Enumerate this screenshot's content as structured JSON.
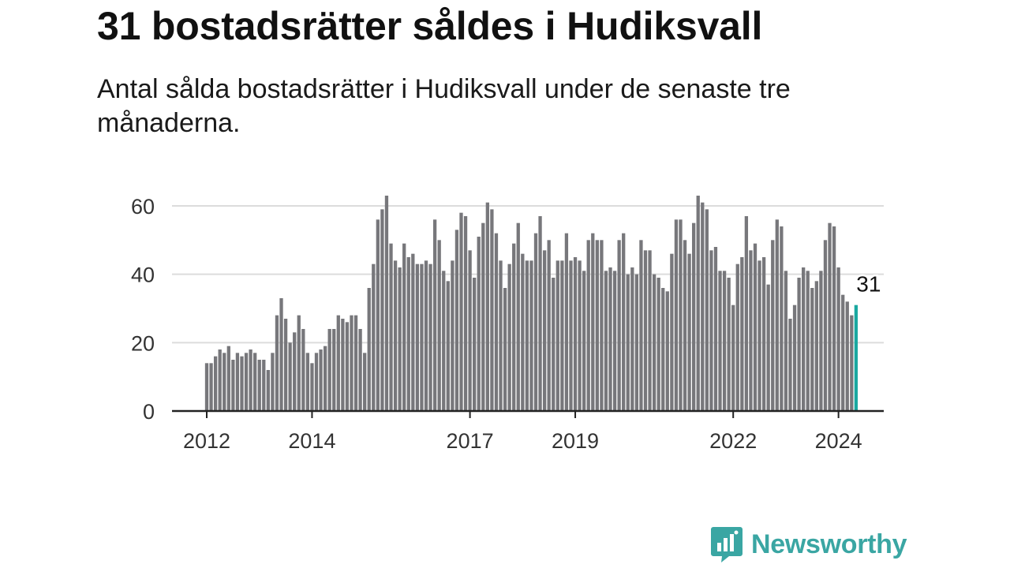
{
  "title": "31 bostadsrätter såldes i Hudiksvall",
  "subtitle": "Antal sålda bostadsrätter i Hudiksvall under de senaste tre månaderna.",
  "brand": {
    "name": "Newsworthy",
    "icon": "newsworthy-logo-icon",
    "color": "#3aa6a3"
  },
  "colors": {
    "bar": "#77777b",
    "highlight": "#1aa8a0",
    "grid": "#dcdcdc",
    "axis": "#222222"
  },
  "chart_data": {
    "type": "bar",
    "xlabel": "",
    "ylabel": "",
    "ylim": [
      0,
      65
    ],
    "yticks": [
      0,
      20,
      40,
      60
    ],
    "x_start": "2012-01",
    "x_ticks": [
      {
        "label": "2012",
        "index": 0
      },
      {
        "label": "2014",
        "index": 24
      },
      {
        "label": "2017",
        "index": 60
      },
      {
        "label": "2019",
        "index": 84
      },
      {
        "label": "2022",
        "index": 120
      },
      {
        "label": "2024",
        "index": 144
      }
    ],
    "values": [
      14,
      14,
      16,
      18,
      17,
      19,
      15,
      17,
      16,
      17,
      18,
      17,
      15,
      15,
      12,
      17,
      28,
      33,
      27,
      20,
      23,
      28,
      24,
      17,
      14,
      17,
      18,
      19,
      24,
      24,
      28,
      27,
      26,
      28,
      28,
      24,
      17,
      36,
      43,
      56,
      59,
      63,
      49,
      44,
      42,
      49,
      45,
      46,
      43,
      43,
      44,
      43,
      56,
      50,
      41,
      38,
      44,
      53,
      58,
      57,
      47,
      39,
      51,
      55,
      61,
      59,
      52,
      44,
      36,
      43,
      49,
      55,
      46,
      44,
      44,
      52,
      57,
      47,
      50,
      39,
      44,
      44,
      52,
      44,
      45,
      44,
      41,
      50,
      52,
      50,
      50,
      41,
      42,
      41,
      50,
      52,
      40,
      42,
      40,
      50,
      47,
      47,
      40,
      39,
      36,
      35,
      46,
      56,
      56,
      50,
      46,
      55,
      63,
      61,
      59,
      47,
      48,
      41,
      41,
      39,
      31,
      43,
      45,
      57,
      47,
      49,
      44,
      45,
      37,
      50,
      56,
      54,
      41,
      27,
      31,
      39,
      42,
      41,
      36,
      38,
      41,
      50,
      55,
      54,
      42,
      34,
      32,
      28,
      31
    ],
    "highlight_index": 148,
    "annotation": {
      "index": 148,
      "text": "31"
    }
  }
}
